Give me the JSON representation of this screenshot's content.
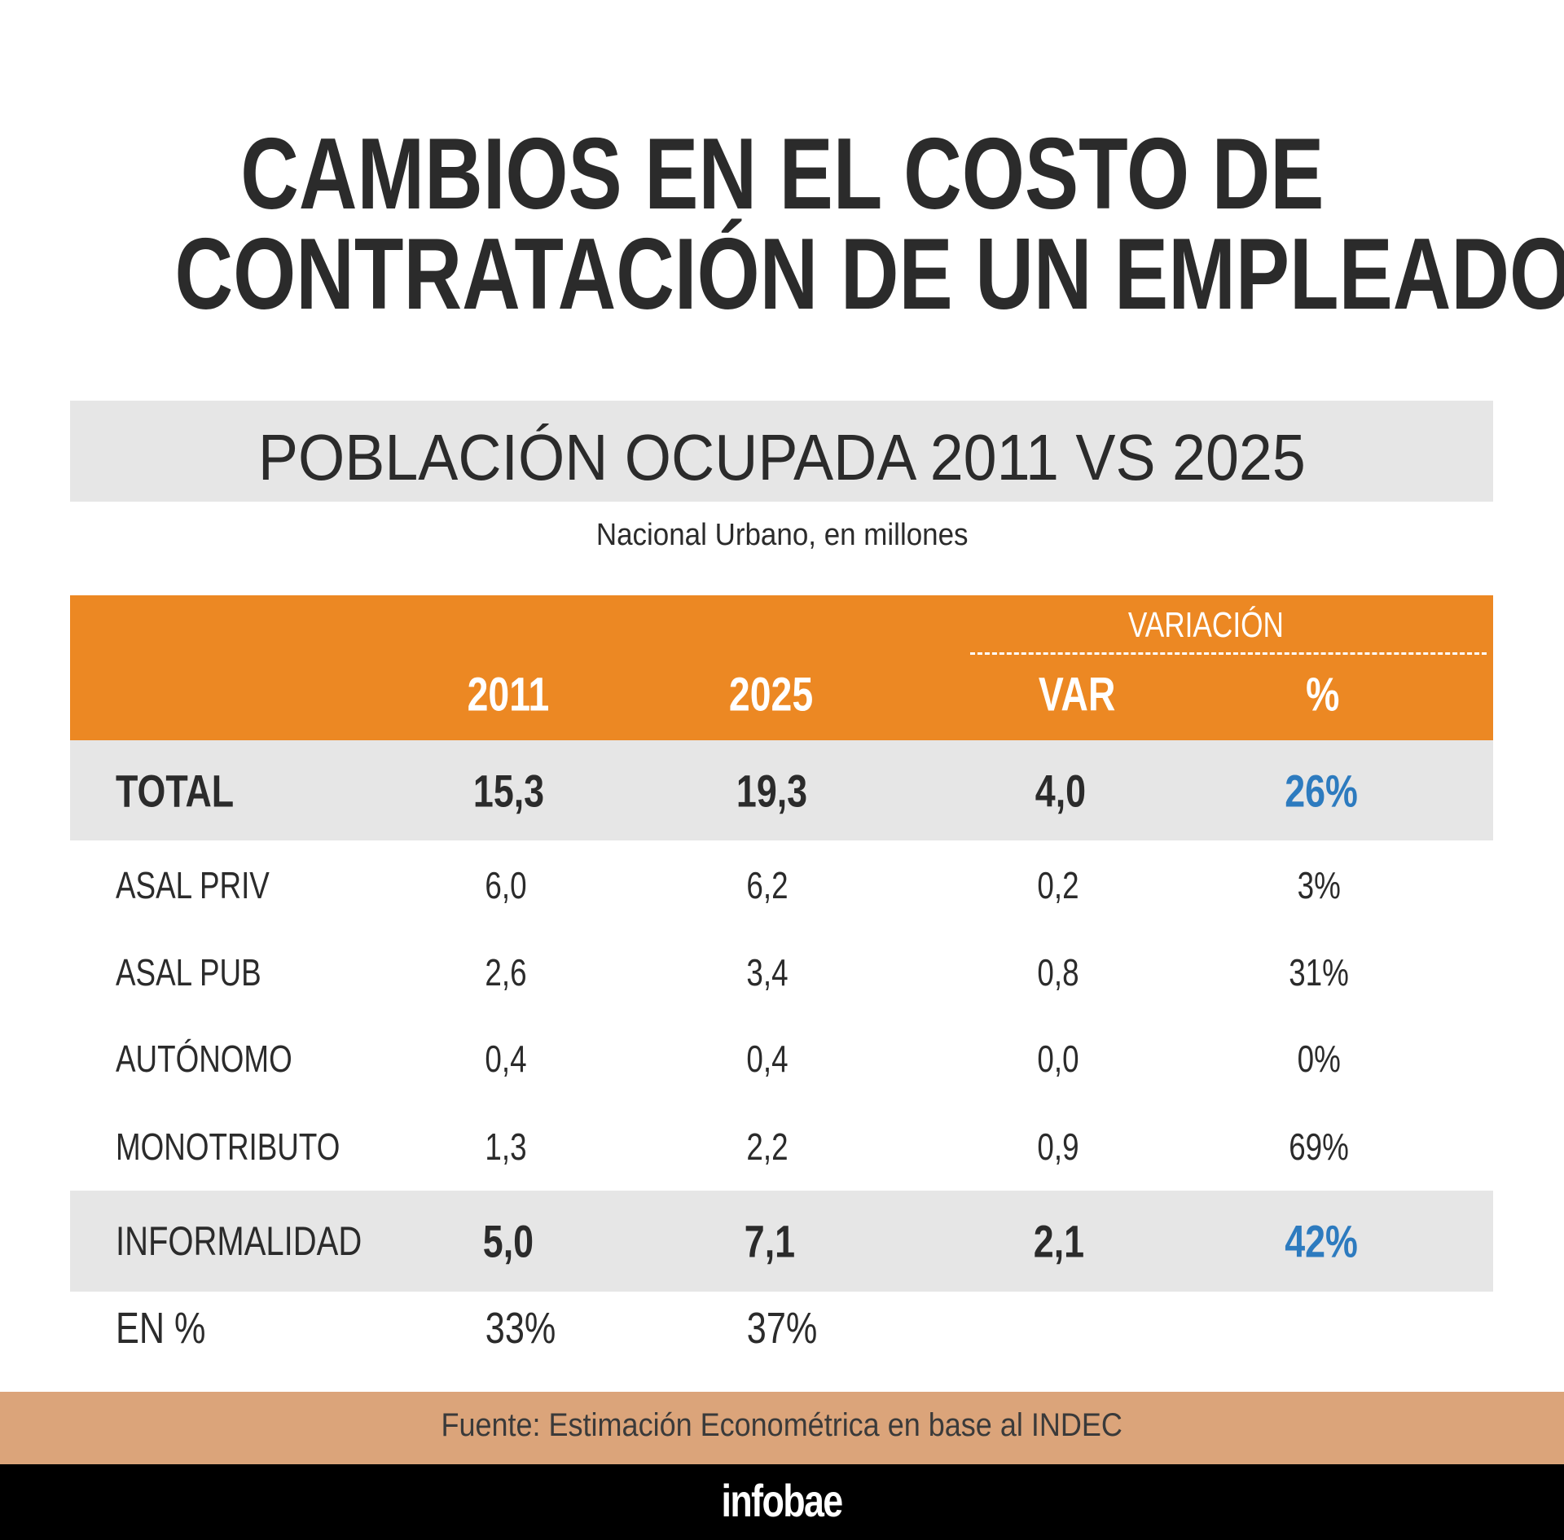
{
  "title": {
    "line1": "CAMBIOS EN EL COSTO DE",
    "line2": "CONTRATACIÓN DE UN EMPLEADO"
  },
  "subtitle": "POBLACIÓN OCUPADA 2011 VS 2025",
  "note": "Nacional Urbano, en millones",
  "table": {
    "group_header": "VARIACIÓN",
    "columns": [
      "2011",
      "2025",
      "VAR",
      "%"
    ],
    "rows": [
      {
        "label": "TOTAL",
        "values": [
          "15,3",
          "19,3",
          "4,0",
          "26%"
        ],
        "highlight": true
      },
      {
        "label": "ASAL PRIV",
        "values": [
          "6,0",
          "6,2",
          "0,2",
          "3%"
        ]
      },
      {
        "label": "ASAL PUB",
        "values": [
          "2,6",
          "3,4",
          "0,8",
          "31%"
        ]
      },
      {
        "label": "AUTÓNOMO",
        "values": [
          "0,4",
          "0,4",
          "0,0",
          "0%"
        ]
      },
      {
        "label": "MONOTRIBUTO",
        "values": [
          "1,3",
          "2,2",
          "0,9",
          "69%"
        ]
      },
      {
        "label": "INFORMALIDAD",
        "values": [
          "5,0",
          "7,1",
          "2,1",
          "42%"
        ],
        "highlight": true
      },
      {
        "label": "EN %",
        "values": [
          "33%",
          "37%"
        ]
      }
    ]
  },
  "source": "Fuente: Estimación Econométrica en base al INDEC",
  "logo": "infobae",
  "colors": {
    "header": "#ec8823",
    "band": "#e6e6e6",
    "accent_blue": "#2d7bbf",
    "source_band": "#dba47a",
    "footer": "#000000"
  }
}
